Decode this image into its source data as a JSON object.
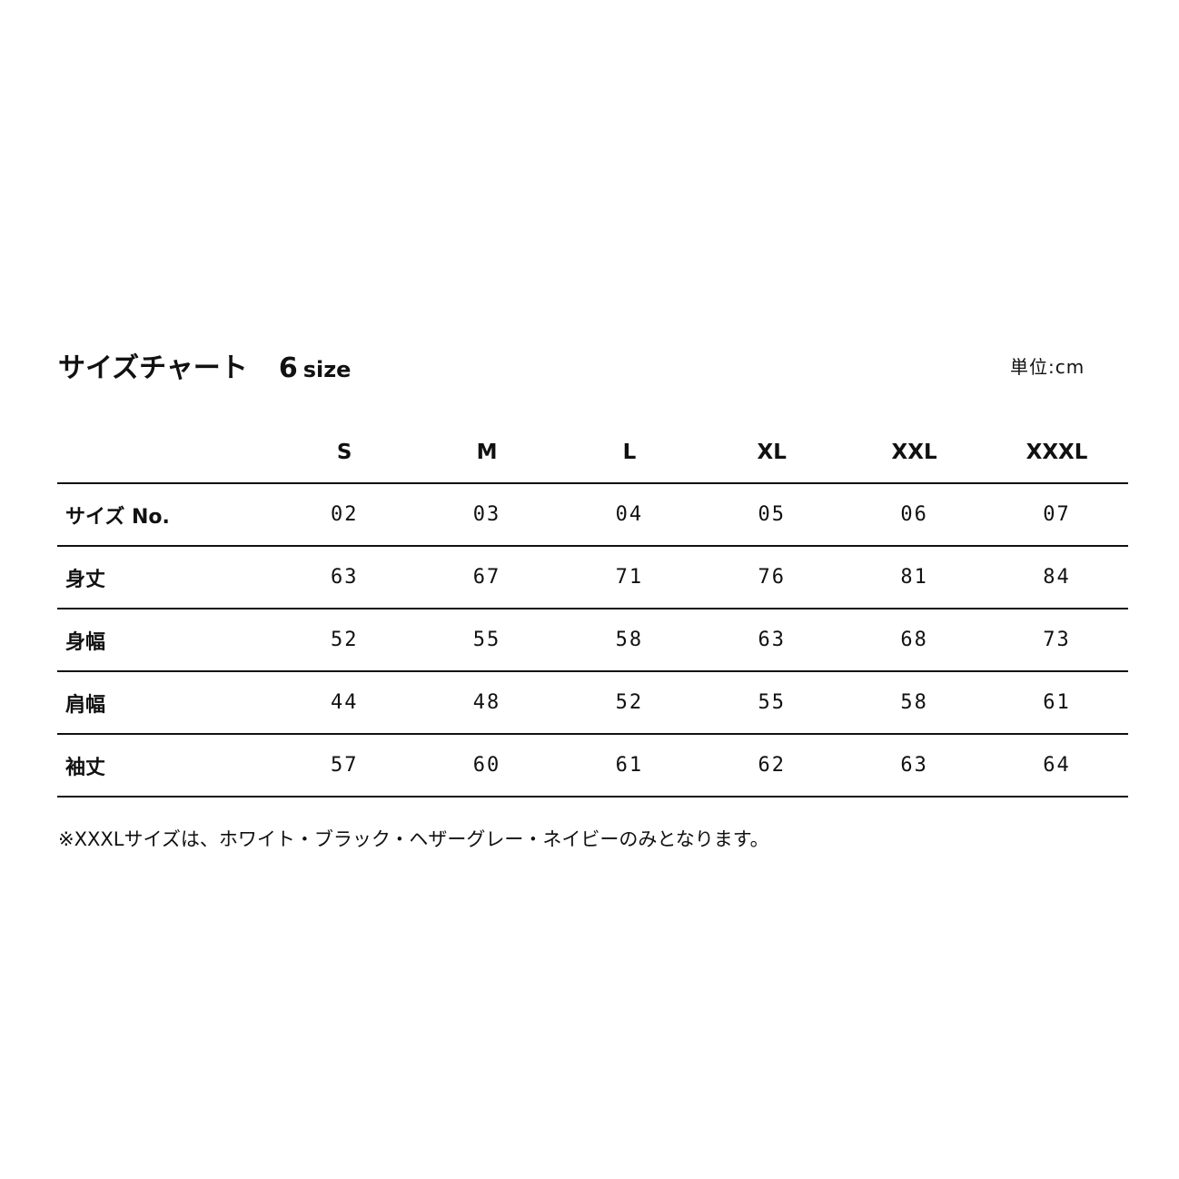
{
  "title": {
    "main": "サイズチャート",
    "count": "6",
    "count_unit": "size"
  },
  "unit_label": "単位:cm",
  "table": {
    "columns": [
      "S",
      "M",
      "L",
      "XL",
      "XXL",
      "XXXL"
    ],
    "rows": [
      {
        "label": "サイズ No.",
        "values": [
          "02",
          "03",
          "04",
          "05",
          "06",
          "07"
        ]
      },
      {
        "label": "身丈",
        "values": [
          "63",
          "67",
          "71",
          "76",
          "81",
          "84"
        ]
      },
      {
        "label": "身幅",
        "values": [
          "52",
          "55",
          "58",
          "63",
          "68",
          "73"
        ]
      },
      {
        "label": "肩幅",
        "values": [
          "44",
          "48",
          "52",
          "55",
          "58",
          "61"
        ]
      },
      {
        "label": "袖丈",
        "values": [
          "57",
          "60",
          "61",
          "62",
          "63",
          "64"
        ]
      }
    ]
  },
  "note": "※XXXLサイズは、ホワイト・ブラック・ヘザーグレー・ネイビーのみとなります。"
}
